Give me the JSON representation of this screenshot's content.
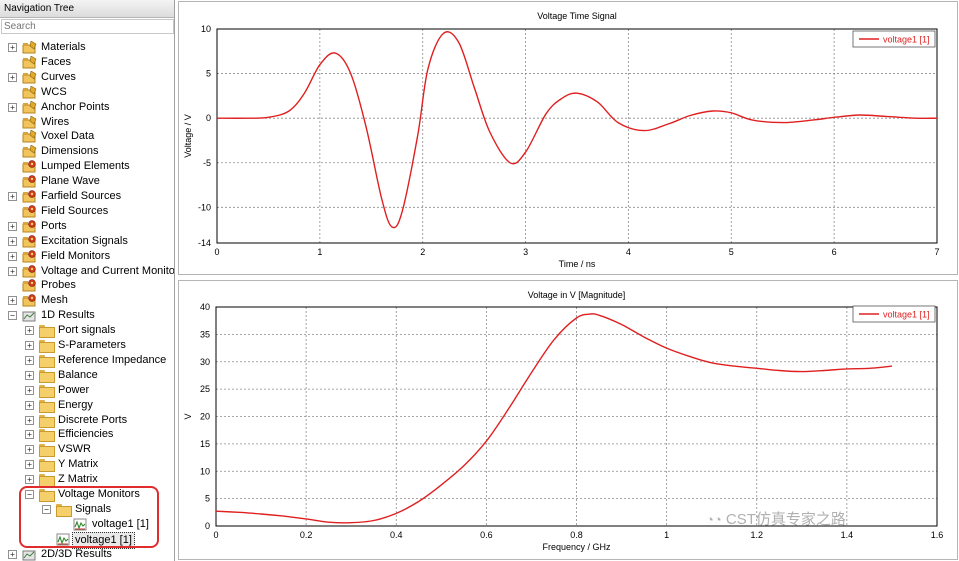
{
  "nav": {
    "title": "Navigation Tree",
    "search_placeholder": "Search",
    "items": [
      {
        "label": "Materials",
        "icon": "folder-gold-icon"
      },
      {
        "label": "Faces",
        "icon": "folder-gold-icon"
      },
      {
        "label": "Curves",
        "icon": "folder-gold-icon"
      },
      {
        "label": "WCS",
        "icon": "folder-gold-icon"
      },
      {
        "label": "Anchor Points",
        "icon": "folder-gold-icon"
      },
      {
        "label": "Wires",
        "icon": "folder-gold-icon"
      },
      {
        "label": "Voxel Data",
        "icon": "folder-gold-icon"
      },
      {
        "label": "Dimensions",
        "icon": "folder-gold-icon"
      },
      {
        "label": "Lumped Elements",
        "icon": "folder-red-gear-icon"
      },
      {
        "label": "Plane Wave",
        "icon": "folder-red-gear-icon"
      },
      {
        "label": "Farfield Sources",
        "icon": "folder-red-gear-icon"
      },
      {
        "label": "Field Sources",
        "icon": "folder-red-gear-icon"
      },
      {
        "label": "Ports",
        "icon": "folder-red-gear-icon"
      },
      {
        "label": "Excitation Signals",
        "icon": "folder-red-gear-icon"
      },
      {
        "label": "Field Monitors",
        "icon": "folder-red-gear-icon"
      },
      {
        "label": "Voltage and Current Monitors",
        "icon": "folder-red-gear-icon"
      },
      {
        "label": "Probes",
        "icon": "folder-red-gear-icon"
      },
      {
        "label": "Mesh",
        "icon": "folder-red-gear-icon"
      },
      {
        "label": "1D Results",
        "icon": "results-folder-icon"
      },
      {
        "label": "Port signals",
        "icon": "folder-icon"
      },
      {
        "label": "S-Parameters",
        "icon": "folder-icon"
      },
      {
        "label": "Reference Impedance",
        "icon": "folder-icon"
      },
      {
        "label": "Balance",
        "icon": "folder-icon"
      },
      {
        "label": "Power",
        "icon": "folder-icon"
      },
      {
        "label": "Energy",
        "icon": "folder-icon"
      },
      {
        "label": "Discrete Ports",
        "icon": "folder-icon"
      },
      {
        "label": "Efficiencies",
        "icon": "folder-icon"
      },
      {
        "label": "VSWR",
        "icon": "folder-icon"
      },
      {
        "label": "Y Matrix",
        "icon": "folder-icon"
      },
      {
        "label": "Z Matrix",
        "icon": "folder-icon"
      },
      {
        "label": "Voltage Monitors",
        "icon": "folder-icon"
      },
      {
        "label": "Signals",
        "icon": "folder-icon"
      },
      {
        "label": "voltage1 [1]",
        "icon": "signal-curve-icon"
      },
      {
        "label": "voltage1 [1]",
        "icon": "signal-curve-icon"
      },
      {
        "label": "2D/3D Results",
        "icon": "results-folder-icon"
      }
    ]
  },
  "chart_data": [
    {
      "type": "line",
      "title": "Voltage Time Signal",
      "xlabel": "Time / ns",
      "ylabel": "Voltage / V",
      "xlim": [
        0,
        7
      ],
      "ylim": [
        -14,
        10
      ],
      "xticks": [
        "0",
        "1",
        "2",
        "3",
        "4",
        "5",
        "6",
        "7"
      ],
      "yticks": [
        "10",
        "5",
        "0",
        "-5",
        "-10",
        "-14"
      ],
      "grid": true,
      "legend": "top-right",
      "series": [
        {
          "name": "voltage1 [1]",
          "color": "#e02020",
          "x": [
            0,
            0.3,
            0.5,
            0.7,
            0.85,
            1.0,
            1.15,
            1.3,
            1.45,
            1.6,
            1.7,
            1.8,
            1.95,
            2.05,
            2.2,
            2.35,
            2.5,
            2.65,
            2.85,
            3.0,
            3.2,
            3.35,
            3.5,
            3.7,
            3.9,
            4.15,
            4.4,
            4.6,
            4.82,
            5.0,
            5.2,
            5.5,
            5.8,
            6.0,
            6.25,
            6.5,
            6.8,
            7.0
          ],
          "y": [
            0,
            0,
            0.1,
            0.8,
            2.8,
            6.0,
            7.3,
            5.0,
            -1.0,
            -9.0,
            -12.2,
            -10.5,
            -2.0,
            5.5,
            9.5,
            8.5,
            3.5,
            -1.5,
            -5.0,
            -3.8,
            0.5,
            2.2,
            2.8,
            1.8,
            -0.5,
            -1.4,
            -0.6,
            0.3,
            0.8,
            0.6,
            -0.2,
            -0.5,
            -0.2,
            0.1,
            0.35,
            0.2,
            0.0,
            0.0
          ]
        }
      ]
    },
    {
      "type": "line",
      "title": "Voltage in V [Magnitude]",
      "xlabel": "Frequency / GHz",
      "ylabel": "V",
      "xlim": [
        0,
        1.6
      ],
      "ylim": [
        0,
        40
      ],
      "xticks": [
        "0",
        "0.2",
        "0.4",
        "0.6",
        "0.8",
        "1",
        "1.2",
        "1.4",
        "1.6"
      ],
      "yticks": [
        "40",
        "35",
        "30",
        "25",
        "20",
        "15",
        "10",
        "5",
        "0"
      ],
      "grid": true,
      "legend": "top-right",
      "series": [
        {
          "name": "voltage1 [1]",
          "color": "#e02020",
          "x": [
            0,
            0.05,
            0.1,
            0.15,
            0.2,
            0.25,
            0.3,
            0.35,
            0.4,
            0.45,
            0.5,
            0.55,
            0.6,
            0.65,
            0.7,
            0.75,
            0.8,
            0.83,
            0.85,
            0.9,
            0.95,
            1.0,
            1.05,
            1.1,
            1.15,
            1.2,
            1.25,
            1.3,
            1.35,
            1.4,
            1.45,
            1.5
          ],
          "y": [
            2.7,
            2.5,
            2.2,
            1.8,
            1.3,
            0.7,
            0.6,
            1.0,
            2.3,
            4.5,
            7.5,
            11.0,
            15.5,
            21.5,
            28.0,
            34.0,
            38.0,
            38.7,
            38.5,
            36.8,
            34.5,
            32.5,
            31.0,
            29.8,
            29.2,
            28.8,
            28.4,
            28.2,
            28.4,
            28.7,
            28.8,
            29.2
          ]
        }
      ]
    }
  ],
  "watermark": "CST仿真专家之路"
}
